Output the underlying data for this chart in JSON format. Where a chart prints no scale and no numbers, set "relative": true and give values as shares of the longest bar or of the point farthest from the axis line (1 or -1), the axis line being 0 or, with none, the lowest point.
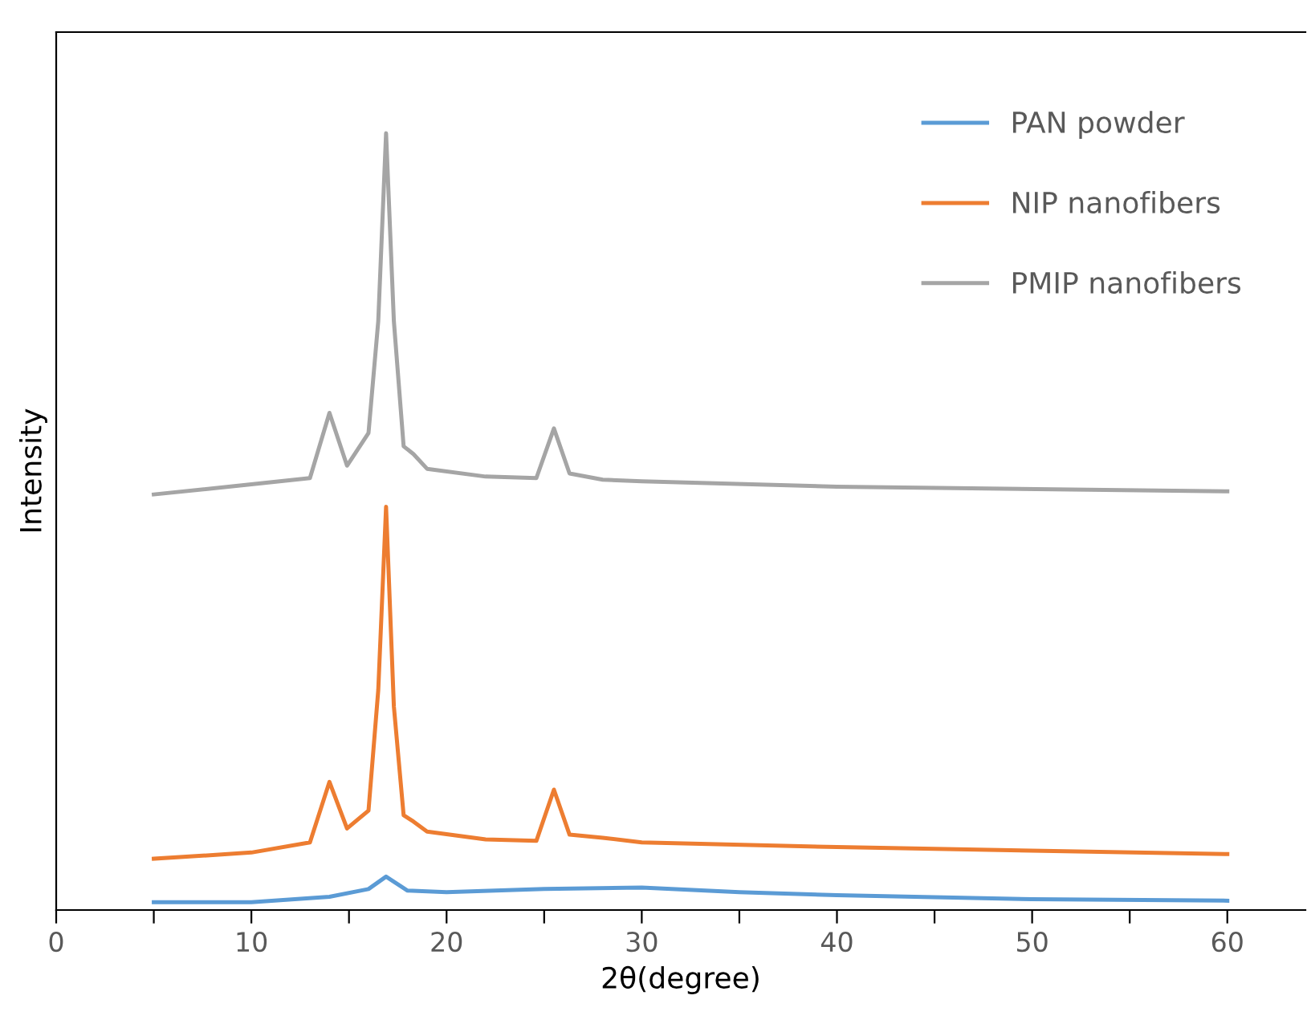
{
  "chart_data": {
    "type": "line",
    "xlabel": "2θ(degree)",
    "ylabel": "Intensity",
    "relative": true,
    "xlim": [
      0,
      64
    ],
    "xticks": [
      0,
      {
        "value": 5,
        "label": null
      },
      10,
      {
        "value": 15,
        "label": null
      },
      20,
      {
        "value": 25,
        "label": null
      },
      30,
      {
        "value": 35,
        "label": null
      },
      40,
      {
        "value": 45,
        "label": null
      },
      50,
      {
        "value": 55,
        "label": null
      },
      60
    ],
    "legend": "top right",
    "grid": false,
    "marker": "none",
    "line_style": "solid",
    "series": [
      {
        "name": "PAN powder",
        "color": "#5b9bd5",
        "x": [
          5,
          10,
          14,
          16,
          16.9,
          18,
          20,
          25,
          30,
          35,
          40,
          50,
          60
        ],
        "values": [
          0.01,
          0.01,
          0.017,
          0.027,
          0.043,
          0.025,
          0.023,
          0.027,
          0.029,
          0.023,
          0.019,
          0.014,
          0.012
        ]
      },
      {
        "name": "NIP nanofibers",
        "color": "#ed7d31",
        "x": [
          5,
          10,
          13,
          14,
          14.9,
          16,
          16.5,
          16.9,
          17.3,
          17.8,
          18.3,
          19,
          22,
          24.6,
          25.5,
          26.3,
          28,
          30,
          40,
          60
        ],
        "values": [
          0.066,
          0.074,
          0.087,
          0.165,
          0.105,
          0.128,
          0.283,
          0.519,
          0.262,
          0.122,
          0.114,
          0.101,
          0.091,
          0.089,
          0.155,
          0.097,
          0.093,
          0.087,
          0.081,
          0.072
        ]
      },
      {
        "name": "PMIP nanofibers",
        "color": "#a5a5a5",
        "x": [
          5,
          10,
          13,
          14,
          14.9,
          16,
          16.5,
          16.9,
          17.3,
          17.8,
          18.3,
          19,
          22,
          24.6,
          25.5,
          26.3,
          28,
          30,
          40,
          60
        ],
        "values": [
          0.535,
          0.548,
          0.556,
          0.64,
          0.572,
          0.614,
          0.758,
          1.0,
          0.758,
          0.597,
          0.587,
          0.568,
          0.558,
          0.556,
          0.62,
          0.562,
          0.554,
          0.552,
          0.545,
          0.539
        ]
      }
    ]
  }
}
